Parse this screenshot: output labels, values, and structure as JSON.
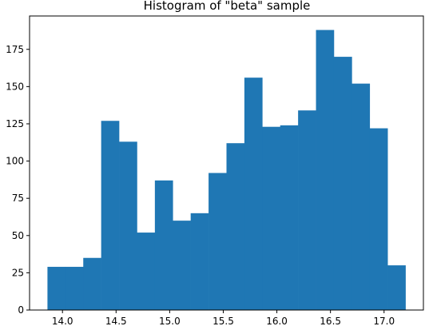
{
  "chart_data": {
    "type": "bar",
    "title": "Histogram of \"beta\" sample",
    "xlabel": "",
    "ylabel": "",
    "bin_edges": [
      13.86,
      14.027,
      14.194,
      14.361,
      14.528,
      14.695,
      14.862,
      15.029,
      15.196,
      15.363,
      15.53,
      15.697,
      15.864,
      16.031,
      16.198,
      16.365,
      16.532,
      16.699,
      16.866,
      17.033,
      17.2
    ],
    "values": [
      29,
      29,
      35,
      127,
      113,
      52,
      87,
      60,
      65,
      92,
      112,
      156,
      123,
      124,
      134,
      188,
      170,
      152,
      122,
      30
    ],
    "xlim": [
      13.693,
      17.367
    ],
    "ylim": [
      0,
      197.4
    ],
    "xticks": [
      "14.0",
      "14.5",
      "15.0",
      "15.5",
      "16.0",
      "16.5",
      "17.0"
    ],
    "yticks": [
      "0",
      "25",
      "50",
      "75",
      "100",
      "125",
      "150",
      "175"
    ],
    "grid": false,
    "colors": {
      "bar": "#1f77b4"
    }
  }
}
